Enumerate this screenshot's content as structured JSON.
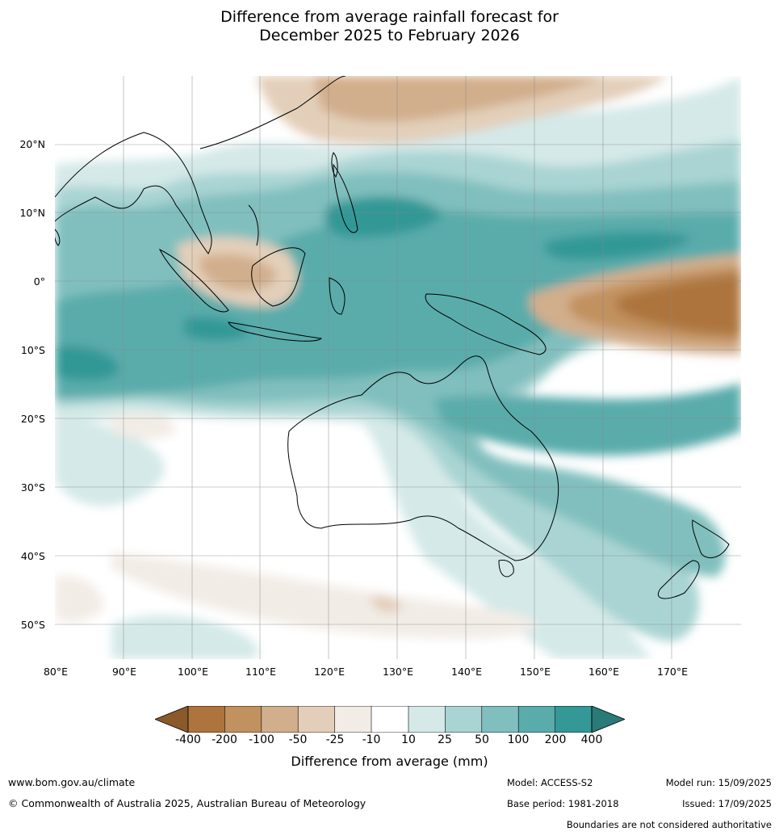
{
  "title_line1": "Difference from average rainfall forecast for",
  "title_line2": "December 2025 to February 2026",
  "lat_labels": [
    "20°N",
    "10°N",
    "0°",
    "10°S",
    "20°S",
    "30°S",
    "40°S",
    "50°S"
  ],
  "lon_labels": [
    "80°E",
    "90°E",
    "100°E",
    "110°E",
    "120°E",
    "130°E",
    "140°E",
    "150°E",
    "160°E",
    "170°E"
  ],
  "colorbar": {
    "labels": [
      "-400",
      "-200",
      "-100",
      "-50",
      "-25",
      "-10",
      "10",
      "25",
      "50",
      "100",
      "200",
      "400"
    ],
    "colors": [
      "#8b5a2b",
      "#ad743d",
      "#c1915f",
      "#d1ae8c",
      "#e3cfb9",
      "#f2ece6",
      "#ffffff",
      "#d4e9e8",
      "#a9d4d3",
      "#80bfbe",
      "#5aacab",
      "#339896",
      "#2a7a78"
    ],
    "title": "Difference from average (mm)"
  },
  "footer": {
    "url": "www.bom.gov.au/climate",
    "copyright": "© Commonwealth of Australia 2025, Australian Bureau of Meteorology",
    "model": "Model: ACCESS-S2",
    "base_period": "Base period: 1981-2018",
    "model_run": "Model run: 15/09/2025",
    "issued": "Issued: 17/09/2025",
    "disclaimer": "Boundaries are not considered authoritative"
  }
}
